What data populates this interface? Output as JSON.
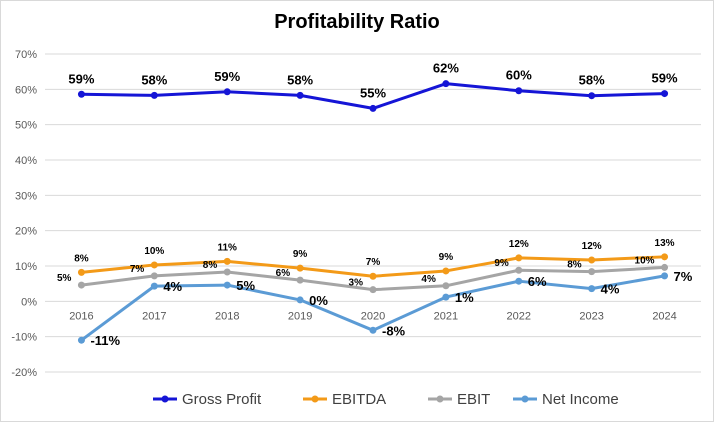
{
  "chart_data": {
    "type": "line",
    "title": "Profitability Ratio",
    "xlabel": "",
    "ylabel": "",
    "categories": [
      "2016",
      "2017",
      "2018",
      "2019",
      "2020",
      "2021",
      "2022",
      "2023",
      "2024"
    ],
    "ylim": [
      -20,
      70
    ],
    "yticks": [
      "-20%",
      "-10%",
      "0%",
      "10%",
      "20%",
      "30%",
      "40%",
      "50%",
      "60%",
      "70%"
    ],
    "grid": true,
    "legend_position": "bottom",
    "series": [
      {
        "name": "Gross Profit",
        "color": "#1515d6",
        "values": [
          58.6,
          58.3,
          59.3,
          58.3,
          54.6,
          61.6,
          59.6,
          58.2,
          58.8
        ],
        "labels": [
          "59%",
          "58%",
          "59%",
          "58%",
          "55%",
          "62%",
          "60%",
          "58%",
          "59%"
        ]
      },
      {
        "name": "EBITDA",
        "color": "#f39a18",
        "values": [
          8.2,
          10.3,
          11.3,
          9.4,
          7.1,
          8.6,
          12.3,
          11.7,
          12.6
        ],
        "labels": [
          "8%",
          "10%",
          "11%",
          "9%",
          "7%",
          "9%",
          "12%",
          "12%",
          "13%"
        ]
      },
      {
        "name": "EBIT",
        "color": "#a5a5a5",
        "values": [
          4.6,
          7.2,
          8.3,
          6.0,
          3.3,
          4.4,
          8.8,
          8.4,
          9.6
        ],
        "labels": [
          "5%",
          "7%",
          "8%",
          "6%",
          "3%",
          "4%",
          "9%",
          "8%",
          "10%"
        ]
      },
      {
        "name": "Net Income",
        "color": "#5b9bd5",
        "values": [
          -11.0,
          4.3,
          4.6,
          0.4,
          -8.2,
          1.2,
          5.7,
          3.6,
          7.2
        ],
        "labels": [
          "-11%",
          "4%",
          "5%",
          "0%",
          "-8%",
          "1%",
          "6%",
          "4%",
          "7%"
        ]
      }
    ]
  }
}
